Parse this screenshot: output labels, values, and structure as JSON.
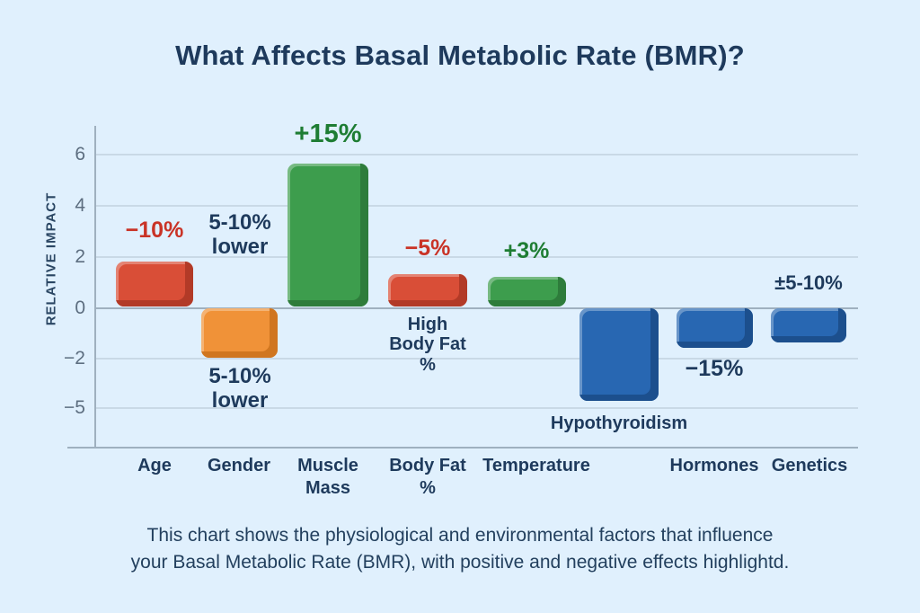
{
  "title": "What Affects Basal Metabolic Rate (BMR)?",
  "caption": {
    "line1": "This chart shows the physiological and environmental factors that influence",
    "line2": "your Basal Metabolic Rate (BMR), with positive and negative effects highlightd."
  },
  "colors": {
    "background": "#E0F0FD",
    "navy": "#1E3A5C",
    "red": "#C93326",
    "green": "#1E7D33",
    "tick": "#5D6E80",
    "grid": "#C9D9E6",
    "axis": "#9FB0BF",
    "bar_red": "#D94E37",
    "bar_red_dark": "#B23A27",
    "bar_orange": "#F09238",
    "bar_orange_dark": "#D0761F",
    "bar_green": "#3D9D4D",
    "bar_green_dark": "#2E7C3B",
    "bar_blue": "#2867B2",
    "bar_blue_dark": "#1C4F8D"
  },
  "chart_data": {
    "type": "bar",
    "title": "What Affects Basal Metabolic Rate (BMR)?",
    "xlabel": "",
    "ylabel": "RELATIVE IMPACT",
    "ylim": [
      -7.4,
      7.0
    ],
    "yticks": [
      "6",
      "4",
      "2",
      "0",
      "−2",
      "−5"
    ],
    "ytick_values": [
      6,
      4,
      2,
      0,
      -2,
      -5
    ],
    "grid": true,
    "legend": false,
    "categories": [
      "Age",
      "Gender",
      "Muscle Mass",
      "Body Fat %",
      "Temperature",
      "Hypothyroidism",
      "Hormones",
      "Genetics"
    ],
    "values": [
      1.8,
      -2.0,
      5.6,
      1.3,
      1.2,
      -4.6,
      -1.6,
      -1.4
    ],
    "bar_color_keys": [
      "bar_red",
      "bar_orange",
      "bar_green",
      "bar_red",
      "bar_green",
      "bar_blue",
      "bar_blue",
      "bar_blue"
    ],
    "bar_dark_keys": [
      "bar_red_dark",
      "bar_orange_dark",
      "bar_green_dark",
      "bar_red_dark",
      "bar_green_dark",
      "bar_blue_dark",
      "bar_blue_dark",
      "bar_blue_dark"
    ],
    "axis_labels": [
      "Age",
      "Gender",
      "Muscle\nMass",
      "Body Fat\n%",
      "Temperature",
      "",
      "Hormones",
      "Genetics"
    ],
    "annotations": [
      {
        "text": "−10%",
        "color": "red",
        "target": "Age",
        "placement": "above"
      },
      {
        "text": "5-10%\nlower",
        "color": "navy",
        "target": "Gender",
        "placement": "above"
      },
      {
        "text": "5-10%\nlower",
        "color": "navy",
        "target": "Gender",
        "placement": "below"
      },
      {
        "text": "+15%",
        "color": "green",
        "target": "Muscle Mass",
        "placement": "above"
      },
      {
        "text": "−5%",
        "color": "red",
        "target": "Body Fat %",
        "placement": "above"
      },
      {
        "text": "High\nBody Fat\n%",
        "color": "navy",
        "target": "Body Fat %",
        "placement": "below"
      },
      {
        "text": "+3%",
        "color": "green",
        "target": "Temperature",
        "placement": "above"
      },
      {
        "text": "Hypothyroidism",
        "color": "navy",
        "target": "Hypothyroidism",
        "placement": "below"
      },
      {
        "text": "−15%",
        "color": "navy",
        "target": "Hormones",
        "placement": "below"
      },
      {
        "text": "±5-10%",
        "color": "navy",
        "target": "Genetics",
        "placement": "above"
      }
    ]
  }
}
